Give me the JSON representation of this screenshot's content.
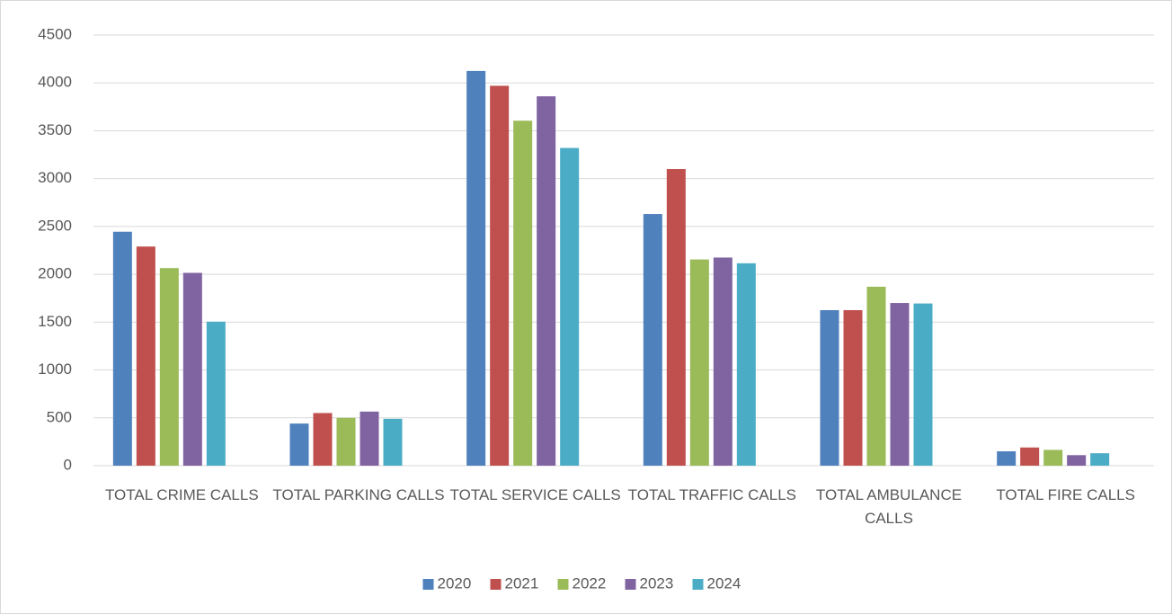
{
  "chart_data": {
    "type": "bar",
    "categories": [
      "TOTAL CRIME CALLS",
      "TOTAL PARKING CALLS",
      "TOTAL SERVICE CALLS",
      "TOTAL TRAFFIC CALLS",
      "TOTAL AMBULANCE CALLS",
      "TOTAL FIRE CALLS"
    ],
    "series": [
      {
        "name": "2020",
        "color": "#4f81bd",
        "values": [
          2445,
          440,
          4125,
          2630,
          1625,
          150
        ]
      },
      {
        "name": "2021",
        "color": "#c0504d",
        "values": [
          2290,
          550,
          3970,
          3100,
          1625,
          190
        ]
      },
      {
        "name": "2022",
        "color": "#9bbb59",
        "values": [
          2065,
          500,
          3605,
          2155,
          1870,
          165
        ]
      },
      {
        "name": "2023",
        "color": "#8064a2",
        "values": [
          2015,
          565,
          3860,
          2175,
          1700,
          110
        ]
      },
      {
        "name": "2024",
        "color": "#4bacc6",
        "values": [
          1505,
          490,
          3320,
          2115,
          1695,
          130
        ]
      }
    ],
    "ylim": [
      0,
      4500
    ],
    "yticks": [
      0,
      500,
      1000,
      1500,
      2000,
      2500,
      3000,
      3500,
      4000,
      4500
    ],
    "grid": true,
    "legend": "bottom"
  }
}
